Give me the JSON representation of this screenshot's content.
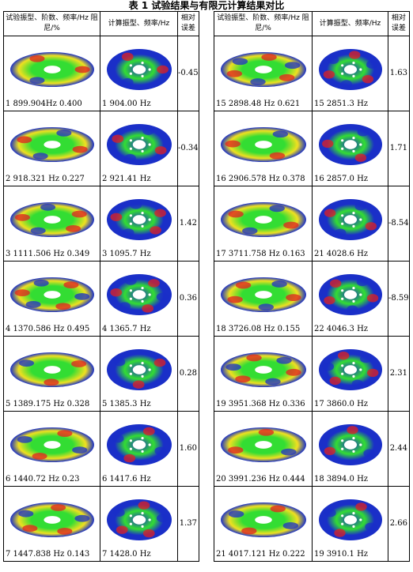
{
  "title": "表 1  试验结果与有限元计算结果对比",
  "headers": {
    "test": "试验振型、阶数、频率/Hz 阻尼/%",
    "calc": "计算振型、频率/Hz",
    "err": "相对误差"
  },
  "rows_left": [
    {
      "test": "1   899.904Hz 0.400",
      "calc": "1     904.00 Hz",
      "err": "-0.45"
    },
    {
      "test": "2   918.321 Hz 0.227",
      "calc": "2    921.41 Hz",
      "err": "-0.34"
    },
    {
      "test": "3   1111.506 Hz 0.349",
      "calc": "3   1095.7 Hz",
      "err": "1.42"
    },
    {
      "test": "4   1370.586 Hz 0.495",
      "calc": "4    1365.7 Hz",
      "err": "0.36"
    },
    {
      "test": "5   1389.175 Hz 0.328",
      "calc": "5    1385.3 Hz",
      "err": "0.28"
    },
    {
      "test": "6     1440.72 Hz 0.23",
      "calc": "6    1417.6 Hz",
      "err": "1.60"
    },
    {
      "test": "7   1447.838 Hz 0.143",
      "calc": "7    1428.0 Hz",
      "err": "1.37"
    }
  ],
  "rows_right": [
    {
      "test": "15   2898.48 Hz 0.621",
      "calc": "15   2851.3 Hz",
      "err": "1.63"
    },
    {
      "test": "16   2906.578 Hz 0.378",
      "calc": "16   2857.0 Hz",
      "err": "1.71"
    },
    {
      "test": "17   3711.758 Hz 0.163",
      "calc": "21   4028.6 Hz",
      "err": "-8.54"
    },
    {
      "test": "18   3726.08 Hz 0.155",
      "calc": "22   4046.3 Hz",
      "err": "-8.59"
    },
    {
      "test": "19   3951.368 Hz 0.336",
      "calc": "17   3860.0 Hz",
      "err": "2.31"
    },
    {
      "test": "20   3991.236 Hz 0.444",
      "calc": "18   3894.0 Hz",
      "err": "2.44"
    },
    {
      "test": "21   4017.121 Hz 0.222",
      "calc": "19   3910.1 Hz",
      "err": "2.66"
    }
  ],
  "colors": {
    "low": "#1a2fc8",
    "mid": "#33dd33",
    "high": "#e02020",
    "warm": "#f0e020"
  }
}
